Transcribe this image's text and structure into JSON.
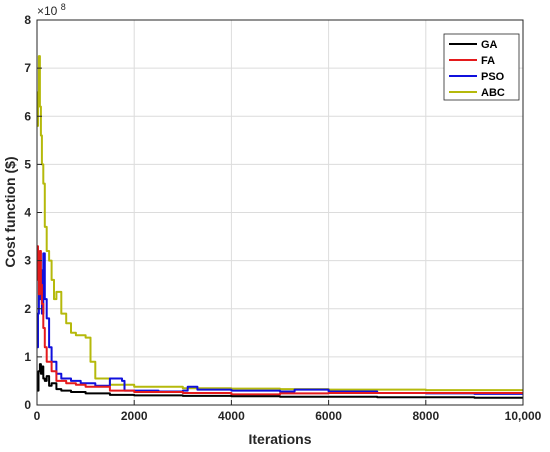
{
  "chart_data": {
    "type": "line",
    "xlabel": "Iterations",
    "ylabel": "Cost function ($)",
    "xlim": [
      0,
      10000
    ],
    "ylim": [
      0,
      8
    ],
    "y_multiplier": "×10",
    "y_multiplier_exp": "8",
    "grid": true,
    "legend_position": "top-right",
    "x_ticks": [
      0,
      2000,
      4000,
      6000,
      8000,
      10000
    ],
    "x_tick_labels": [
      "0",
      "2000",
      "4000",
      "6000",
      "8000",
      "10,000"
    ],
    "y_ticks": [
      0,
      1,
      2,
      3,
      4,
      5,
      6,
      7,
      8
    ],
    "y_tick_labels": [
      "0",
      "1",
      "2",
      "3",
      "4",
      "5",
      "6",
      "7",
      "8"
    ],
    "series": [
      {
        "name": "GA",
        "color": "#000000",
        "x": [
          0,
          30,
          60,
          80,
          100,
          130,
          160,
          200,
          250,
          300,
          400,
          500,
          700,
          1000,
          1500,
          2000,
          3000,
          4000,
          5000,
          6000,
          7000,
          8000,
          9000,
          10000
        ],
        "y": [
          0.3,
          0.7,
          0.85,
          0.65,
          0.8,
          0.55,
          0.5,
          0.6,
          0.4,
          0.45,
          0.33,
          0.3,
          0.27,
          0.24,
          0.21,
          0.2,
          0.19,
          0.18,
          0.17,
          0.17,
          0.16,
          0.16,
          0.15,
          0.15
        ]
      },
      {
        "name": "FA",
        "color": "#e41a1c",
        "x": [
          0,
          20,
          40,
          60,
          80,
          100,
          130,
          160,
          200,
          300,
          400,
          600,
          800,
          1000,
          1500,
          2000,
          3000,
          4000,
          5000,
          6000,
          7000,
          8000,
          9000,
          10000
        ],
        "y": [
          3.3,
          2.6,
          2.3,
          3.2,
          2.5,
          2.1,
          1.6,
          1.2,
          0.9,
          0.7,
          0.5,
          0.45,
          0.42,
          0.38,
          0.3,
          0.27,
          0.25,
          0.22,
          0.24,
          0.25,
          0.25,
          0.25,
          0.25,
          0.25
        ]
      },
      {
        "name": "PSO",
        "color": "#1010dd",
        "x": [
          0,
          20,
          40,
          60,
          80,
          100,
          130,
          160,
          200,
          250,
          300,
          400,
          500,
          700,
          900,
          1200,
          1500,
          1750,
          1800,
          2500,
          3000,
          3100,
          3300,
          4000,
          5000,
          5300,
          6000,
          7000,
          8000,
          9000,
          10000
        ],
        "y": [
          1.2,
          1.9,
          2.6,
          2.2,
          2.8,
          1.9,
          3.15,
          2.2,
          1.8,
          1.2,
          0.9,
          0.65,
          0.55,
          0.5,
          0.45,
          0.4,
          0.55,
          0.5,
          0.3,
          0.28,
          0.3,
          0.38,
          0.32,
          0.3,
          0.28,
          0.32,
          0.28,
          0.25,
          0.24,
          0.23,
          0.23
        ]
      },
      {
        "name": "ABC",
        "color": "#b5b90b",
        "x": [
          0,
          20,
          40,
          60,
          80,
          100,
          130,
          160,
          200,
          250,
          300,
          350,
          400,
          500,
          600,
          700,
          800,
          1000,
          1100,
          1200,
          1500,
          2000,
          3000,
          4000,
          5000,
          6000,
          7000,
          8000,
          9000,
          10000
        ],
        "y": [
          5.8,
          6.5,
          7.25,
          6.2,
          5.6,
          5.0,
          4.6,
          3.7,
          3.2,
          3.0,
          2.6,
          2.2,
          2.35,
          1.9,
          1.7,
          1.5,
          1.45,
          1.4,
          0.9,
          0.55,
          0.42,
          0.38,
          0.35,
          0.34,
          0.33,
          0.32,
          0.32,
          0.31,
          0.31,
          0.31
        ]
      }
    ]
  }
}
